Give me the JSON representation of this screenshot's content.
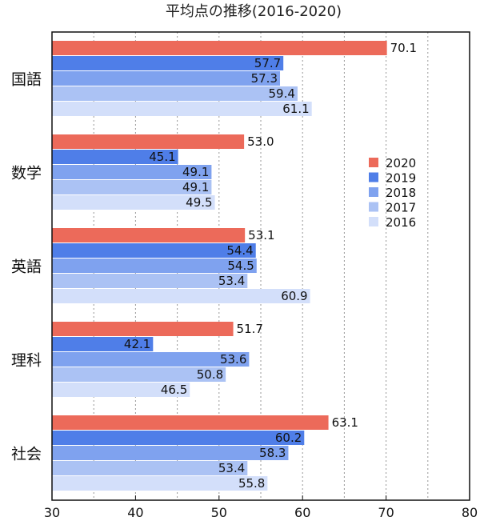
{
  "chart_data": {
    "type": "bar",
    "orientation": "horizontal",
    "title": "平均点の推移(2016-2020)",
    "categories": [
      "国語",
      "数学",
      "英語",
      "理科",
      "社会"
    ],
    "series": [
      {
        "name": "2020",
        "color": "#ec6a5a",
        "values": [
          70.1,
          53.0,
          53.1,
          51.7,
          63.1
        ],
        "labels": [
          "70.1",
          "53.0",
          "53.1",
          "51.7",
          "63.1"
        ]
      },
      {
        "name": "2019",
        "color": "#4f7ee8",
        "values": [
          57.7,
          45.1,
          54.4,
          42.1,
          60.2
        ],
        "labels": [
          "57.7",
          "45.1",
          "54.4",
          "42.1",
          "60.2"
        ]
      },
      {
        "name": "2018",
        "color": "#7fa2ef",
        "values": [
          57.3,
          49.1,
          54.5,
          53.6,
          58.3
        ],
        "labels": [
          "57.3",
          "49.1",
          "54.5",
          "53.6",
          "58.3"
        ]
      },
      {
        "name": "2017",
        "color": "#abc2f4",
        "values": [
          59.4,
          49.1,
          53.4,
          50.8,
          53.4
        ],
        "labels": [
          "59.4",
          "49.1",
          "53.4",
          "50.8",
          "53.4"
        ]
      },
      {
        "name": "2016",
        "color": "#d3dffa",
        "values": [
          61.1,
          49.5,
          60.9,
          46.5,
          55.8
        ],
        "labels": [
          "61.1",
          "49.5",
          "60.9",
          "46.5",
          "55.8"
        ]
      }
    ],
    "xlim": [
      30,
      80
    ],
    "xticks": [
      "30",
      "40",
      "50",
      "60",
      "70",
      "80"
    ],
    "grid_values": [
      35,
      40,
      45,
      50,
      55,
      60,
      65,
      70,
      75
    ],
    "legend_placement": "right"
  }
}
